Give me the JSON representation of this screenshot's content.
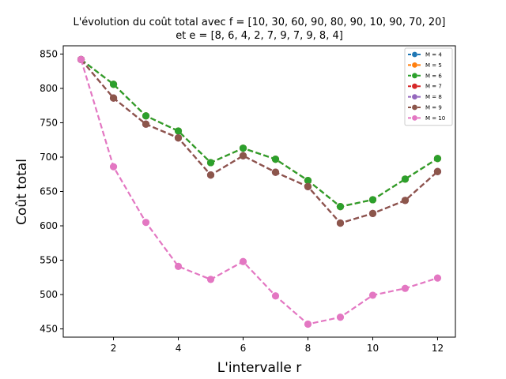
{
  "chart_data": {
    "type": "line",
    "title_line1": "L'évolution du coût total avec f = [10, 30, 60, 90, 80, 90, 10, 90, 70, 20]",
    "title_line2": "et e = [8, 6, 4, 2, 7, 9, 7, 9, 8, 4]",
    "xlabel": "L'intervalle r",
    "ylabel": "Coût total",
    "x": [
      1,
      2,
      3,
      4,
      5,
      6,
      7,
      8,
      9,
      10,
      11,
      12
    ],
    "xticks": [
      2,
      4,
      6,
      8,
      10,
      12
    ],
    "yticks": [
      450,
      500,
      550,
      600,
      650,
      700,
      750,
      800,
      850
    ],
    "xlim": [
      0.45,
      12.55
    ],
    "ylim": [
      438,
      862
    ],
    "grid": false,
    "legend_position": "top-right",
    "series": [
      {
        "name": "M = 4",
        "color": "#1f77b4",
        "values": [
          842,
          806,
          760,
          738,
          692,
          713,
          697,
          666,
          628,
          638,
          668,
          698
        ]
      },
      {
        "name": "M = 5",
        "color": "#ff7f0e",
        "values": [
          842,
          806,
          760,
          738,
          692,
          713,
          697,
          666,
          628,
          638,
          668,
          698
        ]
      },
      {
        "name": "M = 6",
        "color": "#2ca02c",
        "values": [
          842,
          806,
          760,
          738,
          692,
          713,
          697,
          666,
          628,
          638,
          668,
          698
        ]
      },
      {
        "name": "M = 7",
        "color": "#d62728",
        "values": [
          842,
          786,
          748,
          728,
          674,
          702,
          678,
          657,
          604,
          618,
          637,
          679
        ]
      },
      {
        "name": "M = 8",
        "color": "#9467bd",
        "values": [
          842,
          786,
          748,
          728,
          674,
          702,
          678,
          657,
          604,
          618,
          637,
          679
        ]
      },
      {
        "name": "M = 9",
        "color": "#8c564b",
        "values": [
          842,
          786,
          748,
          728,
          674,
          702,
          678,
          657,
          604,
          618,
          637,
          679
        ]
      },
      {
        "name": "M = 10",
        "color": "#e377c2",
        "values": [
          842,
          686,
          605,
          541,
          522,
          548,
          498,
          457,
          467,
          499,
          509,
          524
        ]
      }
    ]
  }
}
